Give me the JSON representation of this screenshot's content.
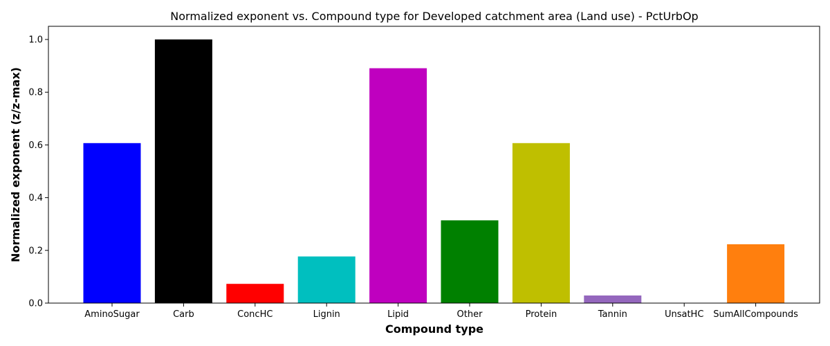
{
  "chart_data": {
    "type": "bar",
    "title": "Normalized exponent vs. Compound type for Developed catchment area (Land use) - PctUrbOp",
    "xlabel": "Compound type",
    "ylabel": "Normalized exponent (z/z-max)",
    "ylim": [
      0,
      1.05
    ],
    "yticks": [
      0.0,
      0.2,
      0.4,
      0.6,
      0.8,
      1.0
    ],
    "ytick_labels": [
      "0.0",
      "0.2",
      "0.4",
      "0.6",
      "0.8",
      "1.0"
    ],
    "grid": false,
    "categories": [
      "AminoSugar",
      "Carb",
      "ConcHC",
      "Lignin",
      "Lipid",
      "Other",
      "Protein",
      "Tannin",
      "UnsatHC",
      "SumAllCompounds"
    ],
    "values": [
      0.607,
      1.0,
      0.073,
      0.177,
      0.891,
      0.314,
      0.607,
      0.029,
      0.0,
      0.223
    ],
    "colors": [
      "#0000ff",
      "#000000",
      "#ff0000",
      "#00bfbf",
      "#bf00bf",
      "#008000",
      "#bfbf00",
      "#9467bd",
      "#1f77b4",
      "#ff7f0e"
    ]
  }
}
